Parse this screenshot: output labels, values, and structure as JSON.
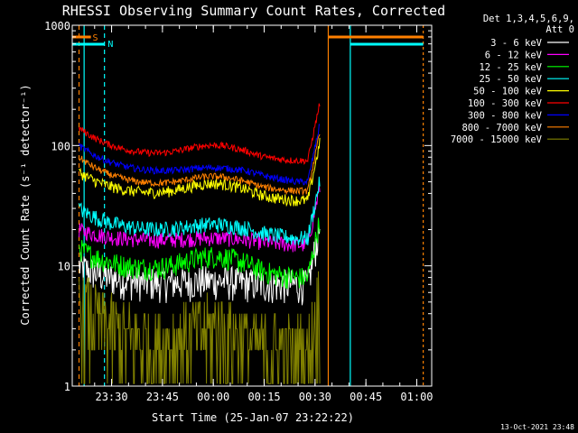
{
  "chart_data": {
    "type": "line",
    "title": "RHESSI Observing Summary Count Rates, Corrected",
    "ylabel": "Corrected Count Rate (s⁻¹ detector⁻¹)",
    "xlabel": "Start Time (25-Jan-07 23:22:22)",
    "timestamp": "13-Oct-2021 23:48",
    "y_scale": "log",
    "ylim": [
      1,
      1000
    ],
    "y_ticks": [
      {
        "value": 1,
        "label": "1"
      },
      {
        "value": 10,
        "label": "10"
      },
      {
        "value": 100,
        "label": "100"
      },
      {
        "value": 1000,
        "label": "1000"
      }
    ],
    "x_ticks": [
      {
        "minutes": 7.6,
        "label": "23:30"
      },
      {
        "minutes": 22.6,
        "label": "23:45"
      },
      {
        "minutes": 37.6,
        "label": "00:00"
      },
      {
        "minutes": 52.6,
        "label": "00:15"
      },
      {
        "minutes": 67.6,
        "label": "00:30"
      },
      {
        "minutes": 82.6,
        "label": "00:45"
      },
      {
        "minutes": 97.6,
        "label": "01:00"
      }
    ],
    "legend": {
      "header": [
        "Det 1,3,4,5,6,9,",
        "Att 0"
      ],
      "position": "right"
    },
    "series": [
      {
        "name": "3 - 6 keV",
        "color": "#ffffff",
        "start": 10,
        "mid": 7,
        "bump": 7.5,
        "end": 7,
        "noise": 0.15
      },
      {
        "name": "6 - 12 keV",
        "color": "#ff00ff",
        "start": 20,
        "mid": 16,
        "bump": 17,
        "end": 15,
        "noise": 0.07
      },
      {
        "name": "12 - 25 keV",
        "color": "#00ff00",
        "start": 14,
        "mid": 9,
        "bump": 12,
        "end": 8,
        "noise": 0.1
      },
      {
        "name": "25 - 50 keV",
        "color": "#00ffff",
        "start": 30,
        "mid": 19,
        "bump": 22,
        "end": 17,
        "noise": 0.07
      },
      {
        "name": "50 - 100 keV",
        "color": "#ffff00",
        "start": 60,
        "mid": 38,
        "bump": 48,
        "end": 35,
        "noise": 0.05
      },
      {
        "name": "100 - 300 keV",
        "color": "#ff0000",
        "start": 140,
        "mid": 80,
        "bump": 100,
        "end": 75,
        "noise": 0.03
      },
      {
        "name": "300 - 800 keV",
        "color": "#0000ff",
        "start": 100,
        "mid": 58,
        "bump": 65,
        "end": 50,
        "noise": 0.03
      },
      {
        "name": "800 - 7000 keV",
        "color": "#ff8000",
        "start": 80,
        "mid": 45,
        "bump": 55,
        "end": 42,
        "noise": 0.03
      },
      {
        "name": "7000 - 15000 keV",
        "color": "#808000",
        "start": 5,
        "mid": 2,
        "bump": 3,
        "end": 2,
        "noise": 0.4
      }
    ],
    "series_time_range_minutes": [
      -2,
      69
    ],
    "attenuator_labels": [
      {
        "text": "S",
        "color": "#ff8000"
      },
      {
        "text": "N",
        "color": "#00ffff"
      }
    ]
  }
}
